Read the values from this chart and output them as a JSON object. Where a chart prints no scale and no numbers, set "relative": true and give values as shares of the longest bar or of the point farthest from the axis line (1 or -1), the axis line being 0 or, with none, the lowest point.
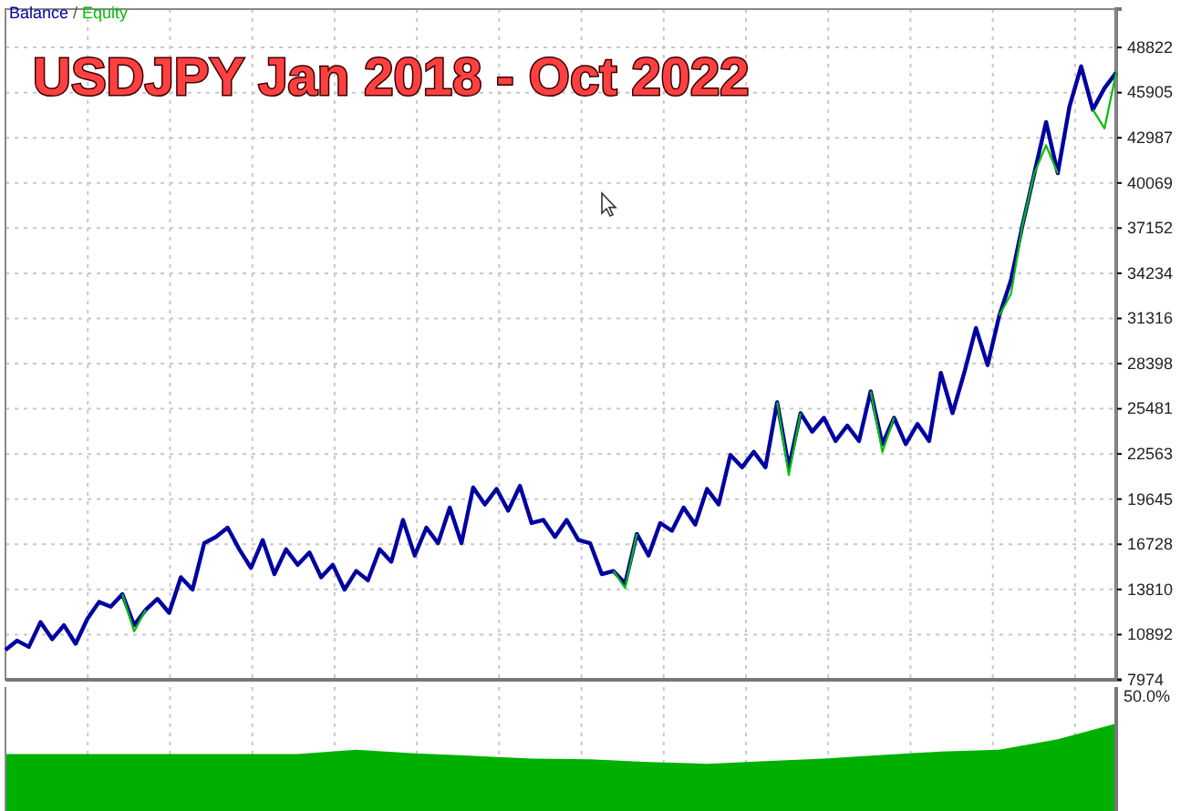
{
  "chart_data": [
    {
      "type": "line",
      "title": "USDJPY Jan 2018 -  Oct 2022",
      "legend": "top left",
      "grid": true,
      "tick_labels": "y",
      "annotations": [
        "/"
      ],
      "categories": [
        null,
        null,
        null,
        null,
        null,
        null,
        null,
        null,
        null,
        null,
        null,
        null,
        null,
        null,
        null,
        null,
        null,
        null,
        null,
        null,
        null,
        null,
        null,
        null,
        null,
        null,
        null,
        null,
        null,
        null,
        null,
        null,
        null,
        null,
        null,
        null,
        null,
        null,
        null,
        null,
        null,
        null,
        null,
        null,
        null,
        null,
        null,
        null,
        null,
        null,
        null,
        null,
        null,
        null,
        null,
        null,
        null,
        null,
        null,
        null,
        null,
        null,
        null,
        null,
        null,
        null,
        null,
        null,
        null,
        null,
        null,
        null,
        null,
        null,
        null,
        null,
        null,
        null,
        null,
        null,
        null,
        null,
        null,
        null,
        null,
        null,
        null,
        null,
        null,
        null,
        null,
        null,
        null,
        null,
        null,
        null
      ],
      "ylim": [
        7974,
        51300
      ],
      "yticks": [
        7974,
        10892,
        13810,
        16728,
        19645,
        22563,
        25481,
        28398,
        31316,
        34234,
        37152,
        40069,
        42987,
        45905,
        48822
      ],
      "series": [
        {
          "name": "Balance",
          "color": "#0000a0",
          "values": [
            9900,
            10500,
            10100,
            11700,
            10600,
            11500,
            10300,
            11900,
            13000,
            12700,
            13500,
            11500,
            12500,
            13200,
            12300,
            14600,
            13800,
            16800,
            17200,
            17800,
            16400,
            15200,
            17000,
            14800,
            16400,
            15400,
            16200,
            14600,
            15400,
            13800,
            15000,
            14400,
            16400,
            15600,
            18300,
            16000,
            17800,
            16800,
            19100,
            16800,
            20400,
            19300,
            20300,
            18900,
            20500,
            18100,
            18300,
            17200,
            18300,
            17000,
            16800,
            14800,
            15000,
            14200,
            17400,
            16000,
            18100,
            17600,
            19100,
            18000,
            20300,
            19300,
            22500,
            21700,
            22700,
            21700,
            25900,
            21700,
            25200,
            24000,
            24900,
            23400,
            24400,
            23400,
            26600,
            23200,
            24900,
            23200,
            24500,
            23400,
            27800,
            25200,
            27800,
            30700,
            28300,
            31500,
            33800,
            37400,
            40700,
            44000,
            40700,
            45000,
            47600,
            44800,
            46200,
            47200
          ]
        },
        {
          "name": "Equity",
          "color": "#00c000",
          "values": [
            null,
            null,
            null,
            null,
            null,
            null,
            null,
            null,
            null,
            null,
            13500,
            11100,
            12500,
            null,
            null,
            null,
            null,
            null,
            null,
            null,
            null,
            null,
            null,
            null,
            null,
            null,
            null,
            null,
            null,
            null,
            null,
            null,
            null,
            null,
            null,
            null,
            null,
            null,
            null,
            null,
            null,
            null,
            null,
            null,
            null,
            null,
            null,
            null,
            null,
            null,
            null,
            null,
            15000,
            13900,
            17400,
            null,
            null,
            null,
            null,
            null,
            null,
            null,
            null,
            null,
            null,
            null,
            25900,
            21200,
            25200,
            null,
            null,
            null,
            null,
            null,
            26600,
            22700,
            24900,
            null,
            null,
            null,
            null,
            null,
            null,
            null,
            null,
            31500,
            32900,
            37400,
            40700,
            42500,
            40700,
            null,
            null,
            44800,
            43600,
            47200
          ]
        }
      ]
    },
    {
      "type": "area",
      "relative": true,
      "annotations": [
        "50.0%"
      ],
      "categories": [
        null,
        null,
        null,
        null,
        null,
        null,
        null,
        null,
        null,
        null,
        null,
        null,
        null,
        null,
        null,
        null,
        null,
        null,
        null,
        null
      ],
      "color": "#00b000",
      "values": [
        0.65,
        0.65,
        0.65,
        0.65,
        0.65,
        0.65,
        0.7,
        0.66,
        0.63,
        0.6,
        0.59,
        0.56,
        0.54,
        0.57,
        0.6,
        0.64,
        0.68,
        0.7,
        0.82,
        1
      ]
    }
  ]
}
